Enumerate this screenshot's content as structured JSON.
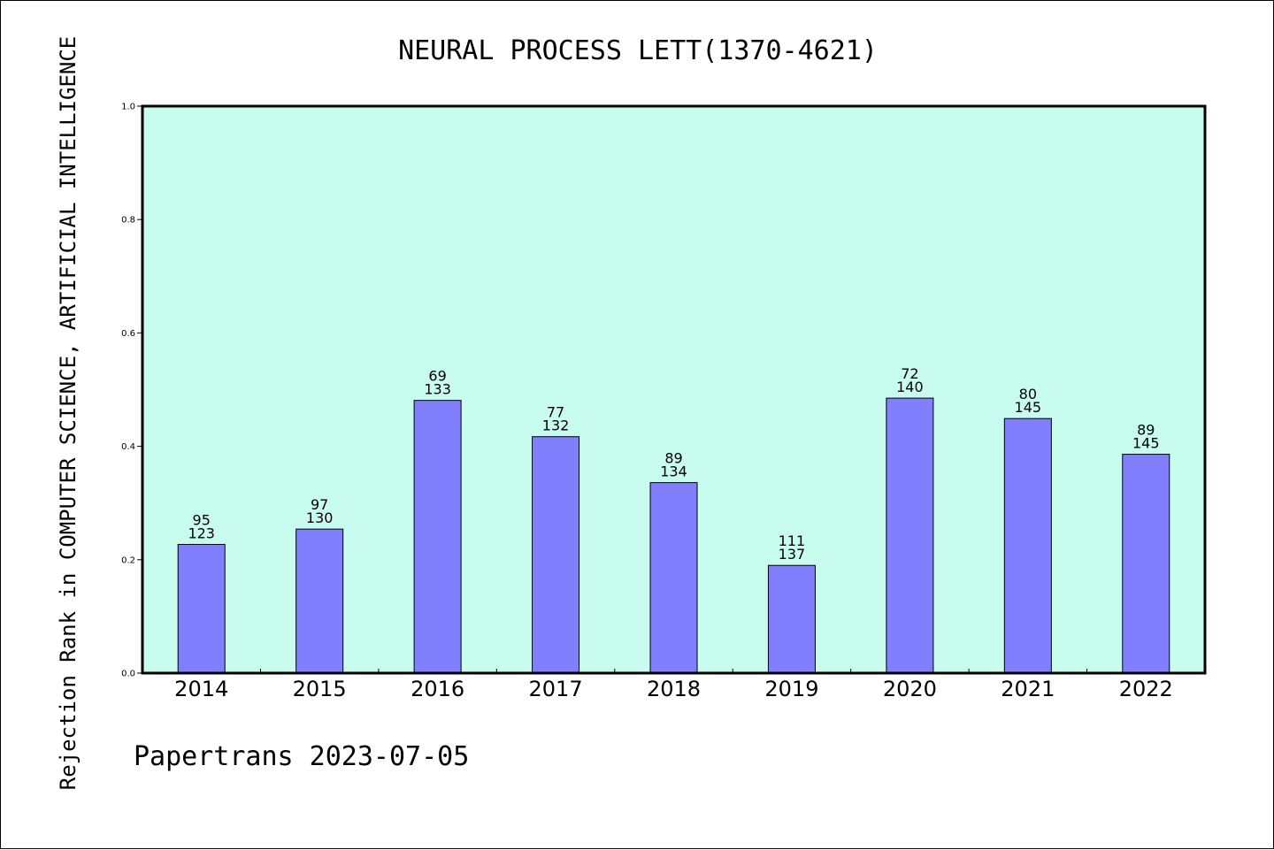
{
  "chart_data": {
    "type": "bar",
    "title": "NEURAL PROCESS LETT(1370-4621)",
    "xlabel": "",
    "ylabel": "Rejection Rank in COMPUTER SCIENCE, ARTIFICIAL INTELLIGENCE",
    "ylim": [
      0.0,
      1.0
    ],
    "yticks": [
      "0.0",
      "0.2",
      "0.4",
      "0.6",
      "0.8",
      "1.0"
    ],
    "categories": [
      "2014",
      "2015",
      "2016",
      "2017",
      "2018",
      "2019",
      "2020",
      "2021",
      "2022"
    ],
    "values": [
      0.227,
      0.254,
      0.481,
      0.417,
      0.336,
      0.19,
      0.485,
      0.449,
      0.386
    ],
    "label_top": [
      "95",
      "97",
      "69",
      "77",
      "89",
      "111",
      "72",
      "80",
      "89"
    ],
    "label_bottom": [
      "123",
      "130",
      "133",
      "132",
      "134",
      "137",
      "140",
      "145",
      "145"
    ],
    "grid": false,
    "colors": {
      "plot_background": "#c8fcee",
      "bar_fill": "#8080ff",
      "bar_stroke": "#000000"
    }
  },
  "footer": {
    "text": "Papertrans 2023-07-05"
  }
}
